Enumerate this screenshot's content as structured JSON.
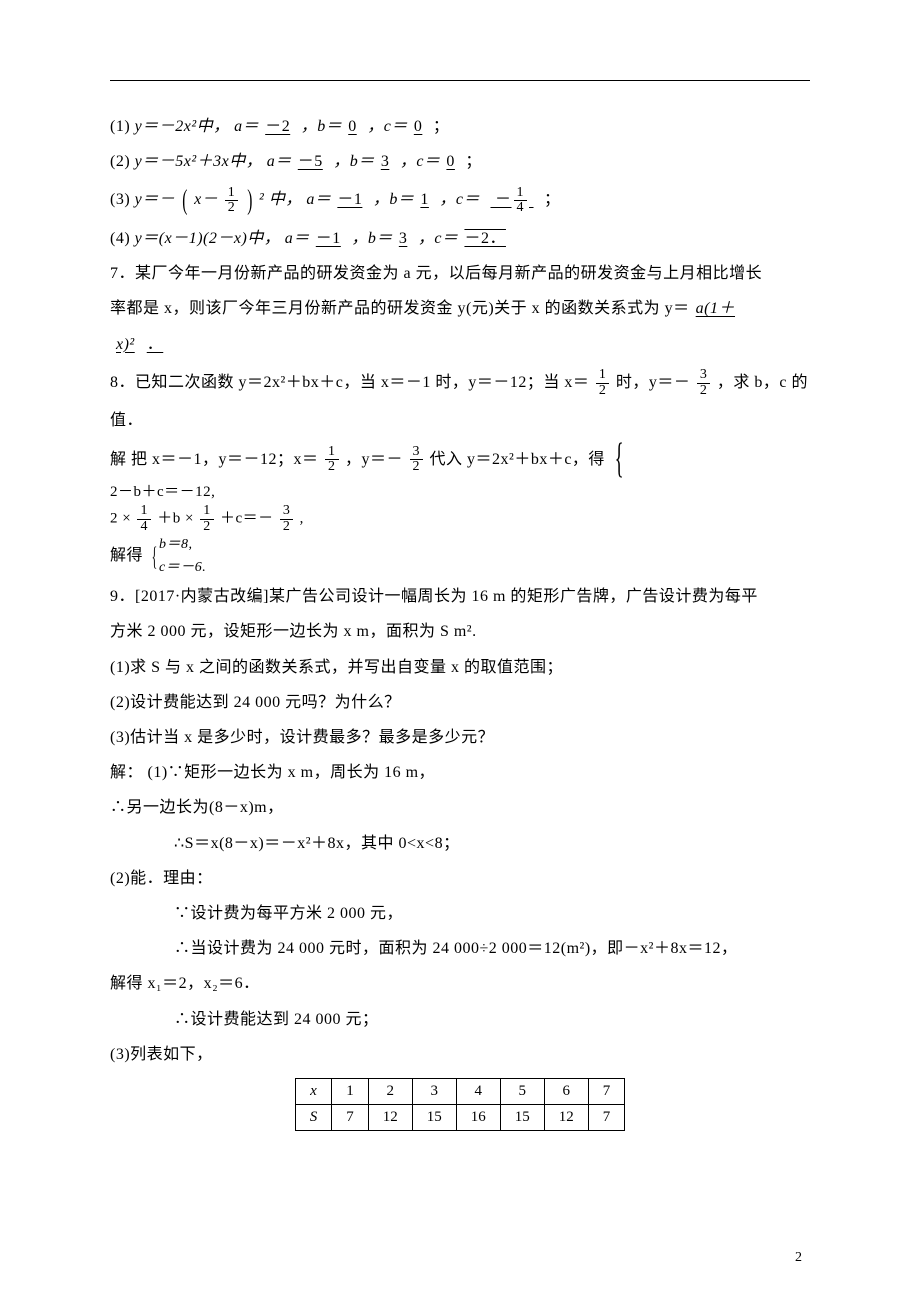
{
  "q6": {
    "l1": {
      "prefix": "(1)",
      "fn": "y＝－2x²中，",
      "a": "－2",
      "b": "0",
      "c": "0",
      "tail": "；"
    },
    "l2": {
      "prefix": "(2)",
      "fn_a": "y＝－5x²＋3x中，",
      "a": "－5",
      "b": "3",
      "c": "0",
      "tail": "；"
    },
    "l3": {
      "prefix": "(3)",
      "fn_pre": "y＝－",
      "fn_mid": "x－",
      "half_n": "1",
      "half_d": "2",
      "fn_post": " ² 中，",
      "a": "－1",
      "b": "1",
      "cn": "1",
      "cd": "4",
      "tail": "；"
    },
    "l4": {
      "prefix": "(4)",
      "fn": "y＝(x－1)(2－x)中，",
      "a": "－1",
      "b": "3",
      "c": "－2．",
      "tail": ""
    }
  },
  "q7": {
    "t1": "7．某厂今年一月份新产品的研发资金为 a 元，以后每月新产品的研发资金与上月相比增长",
    "t2a": "率都是 x，则该厂今年三月份新产品的研发资金 y(元)关于 x 的函数关系式为 y＝",
    "ans": "a(1＋",
    "t3": "x)²",
    "tail": "．"
  },
  "q8": {
    "t1a": "8．已知二次函数 y＝2x²＋bx＋c，当 x＝－1 时，y＝－12；当 x＝",
    "t1b": "时，y＝－",
    "t1c": "，求 b，c 的",
    "half_n": "1",
    "half_d": "2",
    "thr_n": "3",
    "thr_d": "2",
    "t2": "值．",
    "sol1a": "解 把 x＝－1，y＝－12；x＝",
    "sol1b": "，y＝－",
    "sol1c": "代入 y＝2x²＋bx＋c，得",
    "sys_r1": "2－b＋c＝－12,",
    "sys_r2a": "2 ×",
    "qn": "1",
    "qd": "4",
    "sys_r2b": "＋b ×",
    "sys_r2c": "＋c＝－",
    "sys_r2d": ",",
    "sol2": "解得",
    "sys2_r1": "b＝8,",
    "sys2_r2": "c＝－6."
  },
  "q9": {
    "t1": "9．[2017·内蒙古改编]某广告公司设计一幅周长为 16 m 的矩形广告牌，广告设计费为每平",
    "t2": "方米 2 000 元，设矩形一边长为 x m，面积为 S m².",
    "p1": "(1)求 S 与 x 之间的函数关系式，并写出自变量 x 的取值范围；",
    "p2": "(2)设计费能达到 24 000 元吗？为什么？",
    "p3": "(3)估计当 x 是多少时，设计费最多？最多是多少元？",
    "s1": "解：  (1)∵矩形一边长为 x m，周长为 16 m，",
    "s2": "∴另一边长为(8－x)m，",
    "s3": "∴S＝x(8－x)＝－x²＋8x，其中 0<x<8；",
    "s4": "(2)能．理由：",
    "s5": "∵设计费为每平方米 2 000 元，",
    "s6": "∴当设计费为 24 000 元时，面积为 24 000÷2 000＝12(m²)，即－x²＋8x＝12，",
    "s7": "解得 x₁＝2，x₂＝6．",
    "s8": "∴设计费能达到 24 000 元；",
    "s9": "(3)列表如下，"
  },
  "table": {
    "h1": "x",
    "h2": "S",
    "r1": [
      "1",
      "2",
      "3",
      "4",
      "5",
      "6",
      "7"
    ],
    "r2": [
      "7",
      "12",
      "15",
      "16",
      "15",
      "12",
      "7"
    ]
  },
  "labels": {
    "a": "a＝",
    "b": "，b＝",
    "c": "，c＝",
    "neg": "－"
  },
  "pagenum": "2"
}
